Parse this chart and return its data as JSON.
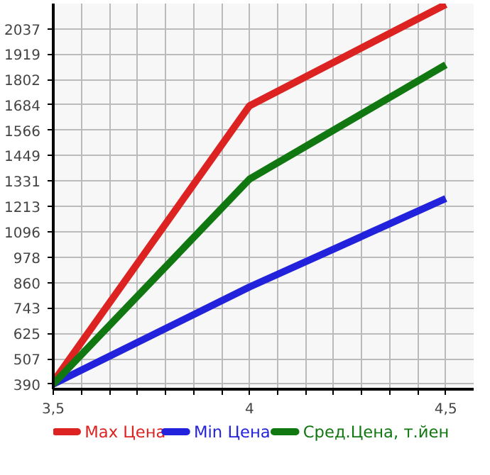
{
  "chart_data": {
    "type": "line",
    "x": [
      3.5,
      4,
      4.5
    ],
    "series": [
      {
        "name": "Max Цена",
        "color": "#dd2222",
        "values": [
          400,
          1680,
          2150
        ]
      },
      {
        "name": "Min Цена",
        "color": "#2222dd",
        "values": [
          390,
          840,
          1250
        ]
      },
      {
        "name": "Сред.Цена, т.йен",
        "color": "#117711",
        "values": [
          390,
          1340,
          1870
        ]
      }
    ],
    "xlim": [
      3.5,
      4.571
    ],
    "ylim": [
      366,
      2154
    ],
    "xticks": [
      {
        "value": 3.5,
        "label": "3,5"
      },
      {
        "value": 3.571,
        "label": null
      },
      {
        "value": 3.643,
        "label": null
      },
      {
        "value": 3.714,
        "label": null
      },
      {
        "value": 3.786,
        "label": null
      },
      {
        "value": 3.857,
        "label": null
      },
      {
        "value": 3.929,
        "label": null
      },
      {
        "value": 4,
        "label": "4"
      },
      {
        "value": 4.071,
        "label": null
      },
      {
        "value": 4.143,
        "label": null
      },
      {
        "value": 4.214,
        "label": null
      },
      {
        "value": 4.286,
        "label": null
      },
      {
        "value": 4.357,
        "label": null
      },
      {
        "value": 4.429,
        "label": null
      },
      {
        "value": 4.5,
        "label": "4,5"
      }
    ],
    "yticks": [
      390,
      507,
      625,
      743,
      860,
      978,
      1096,
      1213,
      1331,
      1449,
      1566,
      1684,
      1802,
      1919,
      2037
    ],
    "grid": true,
    "legend": "bottom",
    "marker": "none",
    "line_style": "solid"
  }
}
